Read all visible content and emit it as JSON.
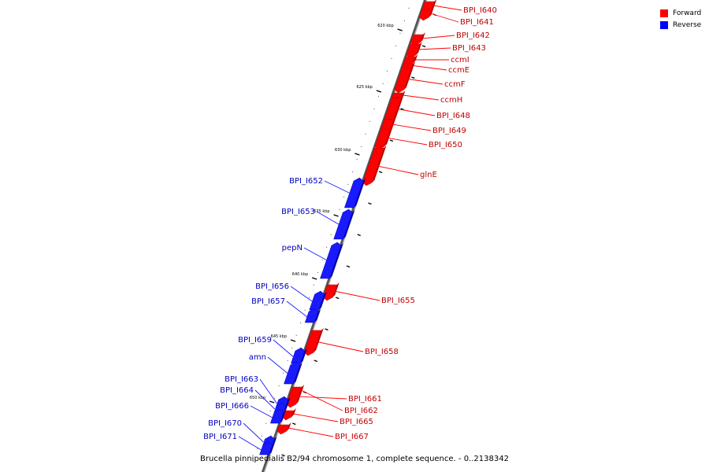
{
  "caption": "Brucella pinnipedialis B2/94 chromosome 1, complete sequence. - 0..2138342",
  "legend": {
    "items": [
      {
        "label": "Forward",
        "color": "#ff0000"
      },
      {
        "label": "Reverse",
        "color": "#0000ff"
      }
    ]
  },
  "colors": {
    "forward": "#ff0000",
    "forward_dark": "#b80000",
    "reverse": "#1a1aff",
    "reverse_dark": "#0000b0"
  },
  "ticks": [
    {
      "label": "620 kbp"
    },
    {
      "label": "625 kbp"
    },
    {
      "label": "630 kbp"
    },
    {
      "label": "635 kbp"
    },
    {
      "label": "640 kbp"
    },
    {
      "label": "645 kbp"
    },
    {
      "label": "650 kbp"
    }
  ],
  "genes": [
    {
      "name": "BPI_I640",
      "strand": "forward"
    },
    {
      "name": "BPI_I641",
      "strand": "forward"
    },
    {
      "name": "BPI_I642",
      "strand": "forward"
    },
    {
      "name": "BPI_I643",
      "strand": "forward"
    },
    {
      "name": "ccmI",
      "strand": "forward"
    },
    {
      "name": "ccmE",
      "strand": "forward"
    },
    {
      "name": "ccmF",
      "strand": "forward"
    },
    {
      "name": "ccmH",
      "strand": "forward"
    },
    {
      "name": "BPI_I648",
      "strand": "forward"
    },
    {
      "name": "BPI_I649",
      "strand": "forward"
    },
    {
      "name": "BPI_I650",
      "strand": "forward"
    },
    {
      "name": "glnE",
      "strand": "forward"
    },
    {
      "name": "BPI_I652",
      "strand": "reverse"
    },
    {
      "name": "BPI_I653",
      "strand": "reverse"
    },
    {
      "name": "pepN",
      "strand": "reverse"
    },
    {
      "name": "BPI_I655",
      "strand": "forward"
    },
    {
      "name": "BPI_I656",
      "strand": "reverse"
    },
    {
      "name": "BPI_I657",
      "strand": "reverse"
    },
    {
      "name": "BPI_I658",
      "strand": "forward"
    },
    {
      "name": "BPI_I659",
      "strand": "reverse"
    },
    {
      "name": "amn",
      "strand": "reverse"
    },
    {
      "name": "BPI_I661",
      "strand": "forward"
    },
    {
      "name": "BPI_I662",
      "strand": "forward"
    },
    {
      "name": "BPI_I663",
      "strand": "reverse"
    },
    {
      "name": "BPI_I664",
      "strand": "reverse"
    },
    {
      "name": "BPI_I665",
      "strand": "forward"
    },
    {
      "name": "BPI_I666",
      "strand": "reverse"
    },
    {
      "name": "BPI_I667",
      "strand": "forward"
    },
    {
      "name": "BPI_I670",
      "strand": "reverse"
    },
    {
      "name": "BPI_I671",
      "strand": "reverse"
    }
  ]
}
